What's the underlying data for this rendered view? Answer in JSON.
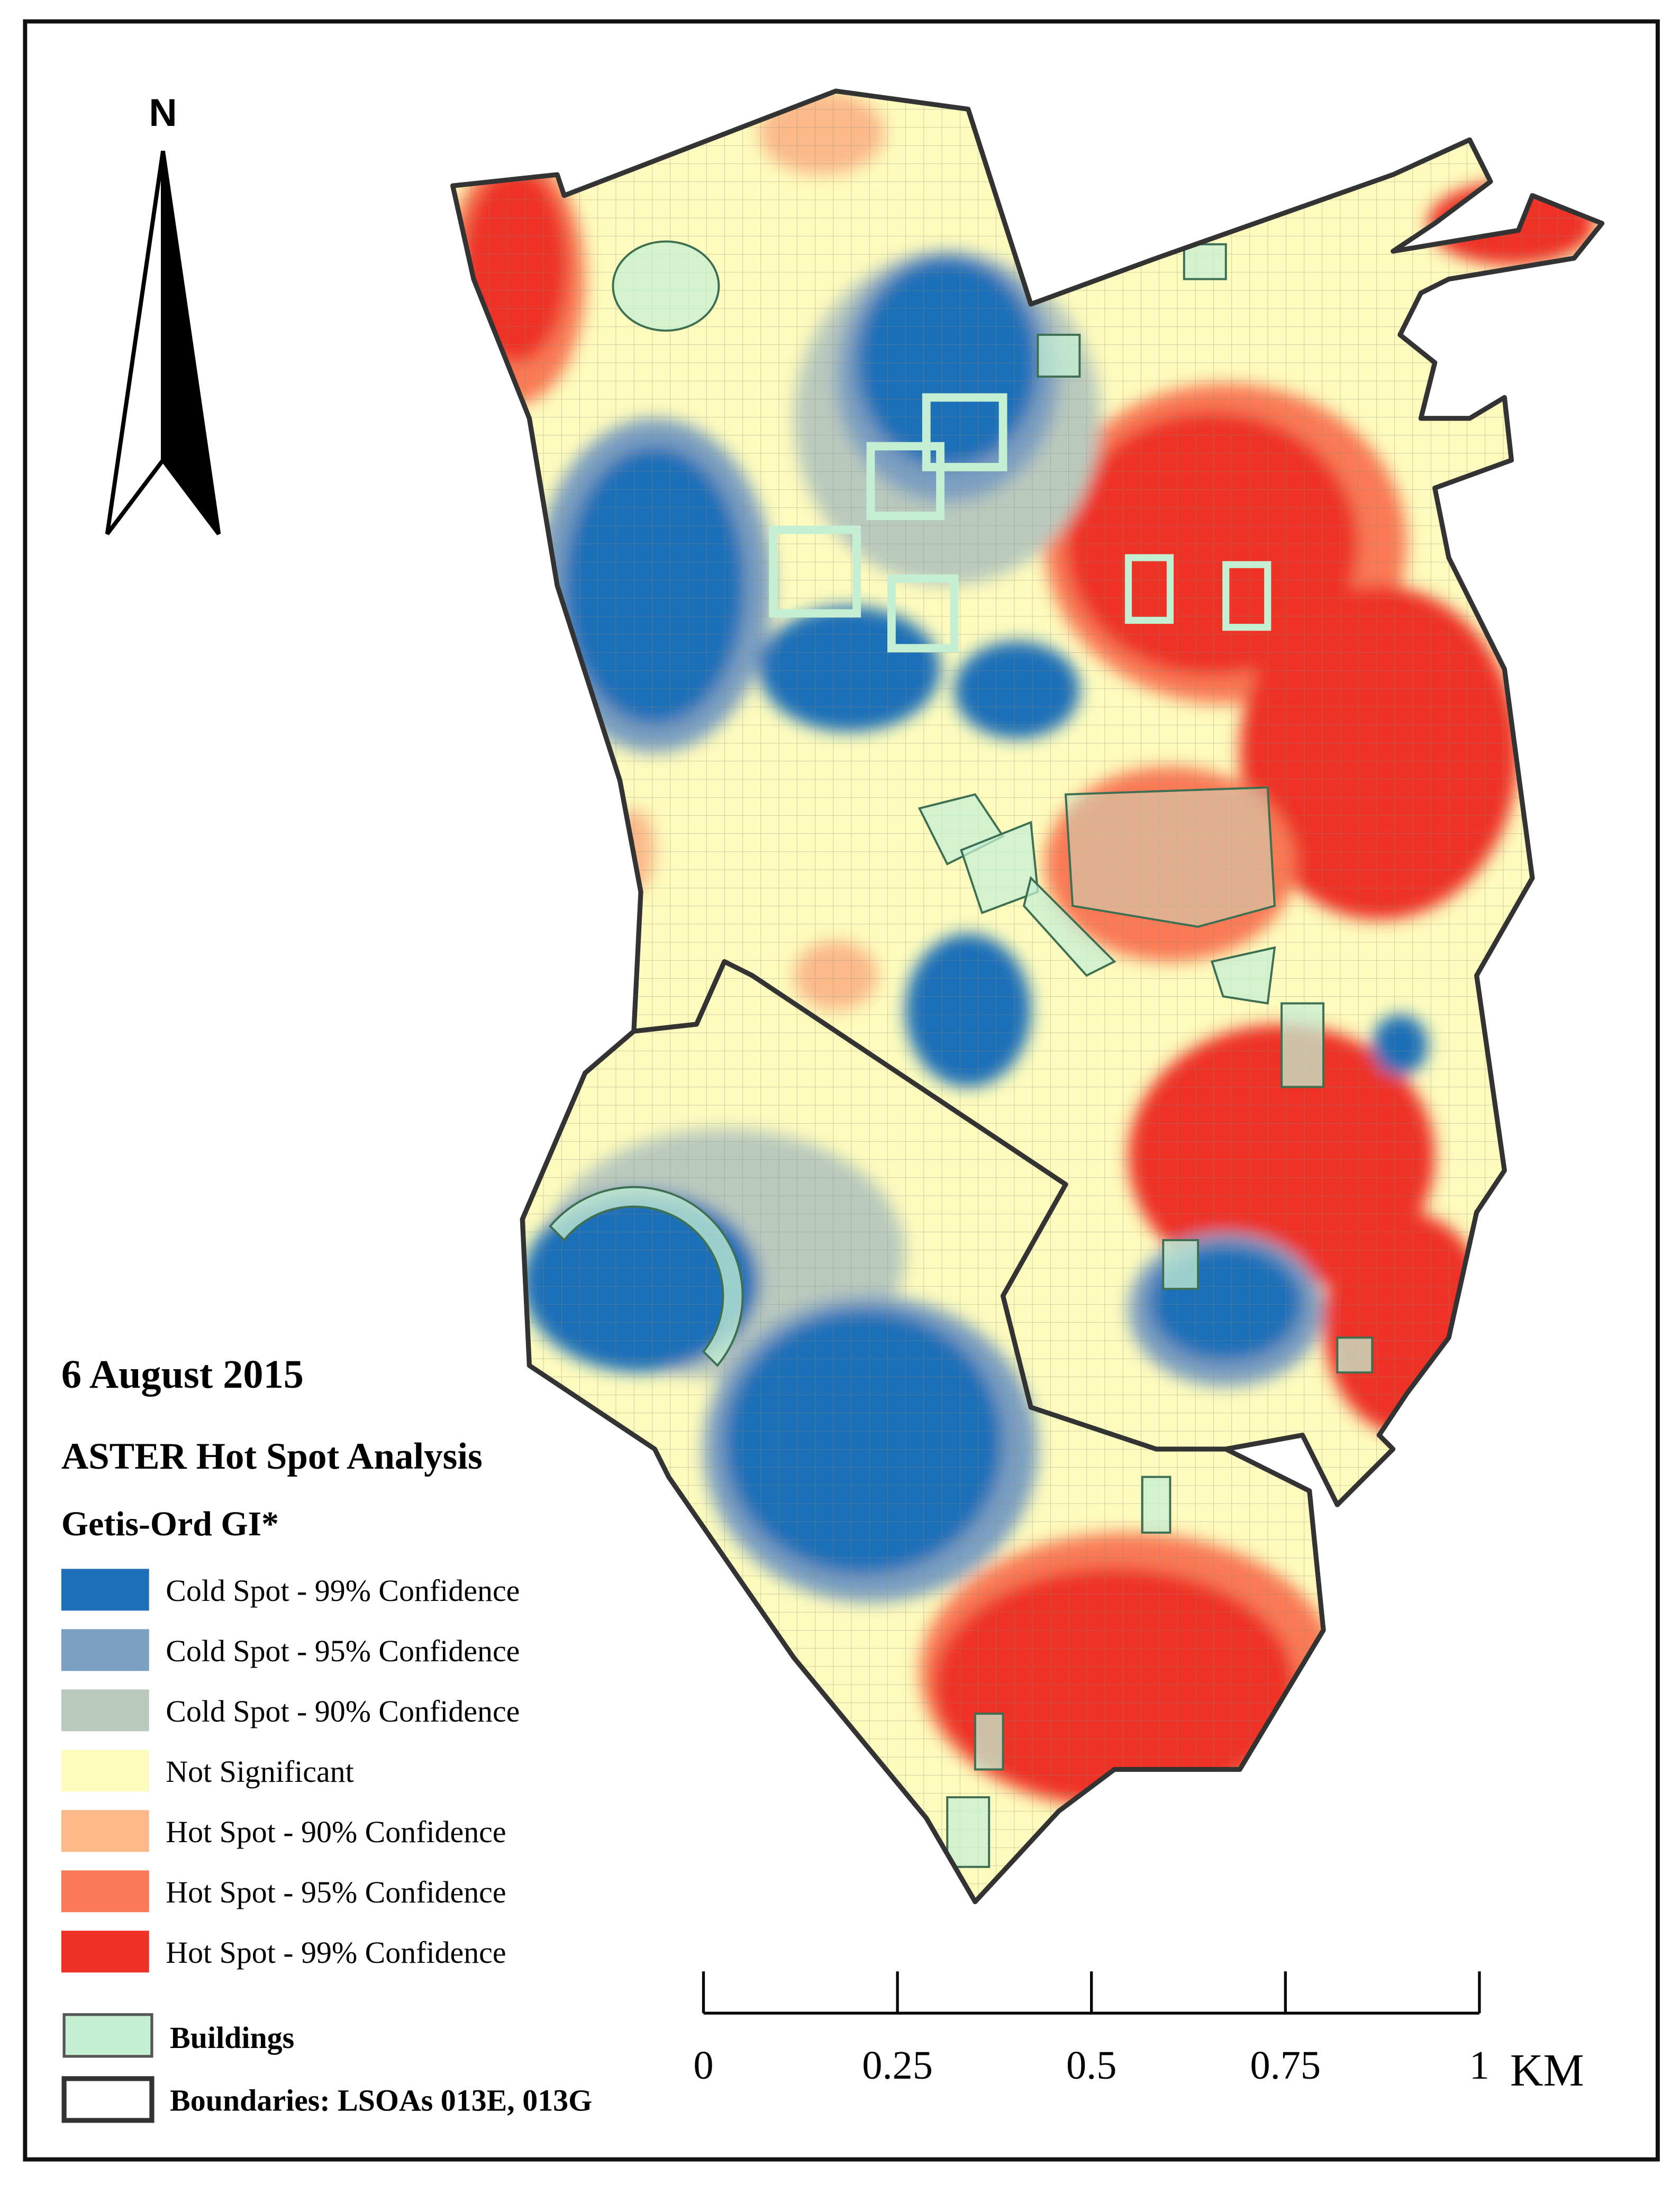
{
  "north": "N",
  "date": "6 August 2015",
  "title": "ASTER Hot Spot Analysis",
  "subtitle": "Getis-Ord GI*",
  "legend": [
    {
      "label": "Cold Spot - 99% Confidence",
      "color": "#1f6fb8"
    },
    {
      "label": "Cold Spot - 95% Confidence",
      "color": "#7b9fc1"
    },
    {
      "label": "Cold Spot - 90% Confidence",
      "color": "#b9c9bd"
    },
    {
      "label": "Not Significant",
      "color": "#fdfbbd"
    },
    {
      "label": "Hot Spot - 90% Confidence",
      "color": "#fbb98a"
    },
    {
      "label": "Hot Spot - 95% Confidence",
      "color": "#f97a55"
    },
    {
      "label": "Hot Spot - 99% Confidence",
      "color": "#ee3025"
    }
  ],
  "buildings": {
    "label": "Buildings",
    "color": "#c4efd3"
  },
  "boundaries": {
    "label": "Boundaries: LSOAs 013E, 013G",
    "color": "#333333"
  },
  "scale_bar": {
    "ticks": [
      0,
      0.25,
      0.5,
      0.75,
      1
    ],
    "unit": "KM"
  }
}
